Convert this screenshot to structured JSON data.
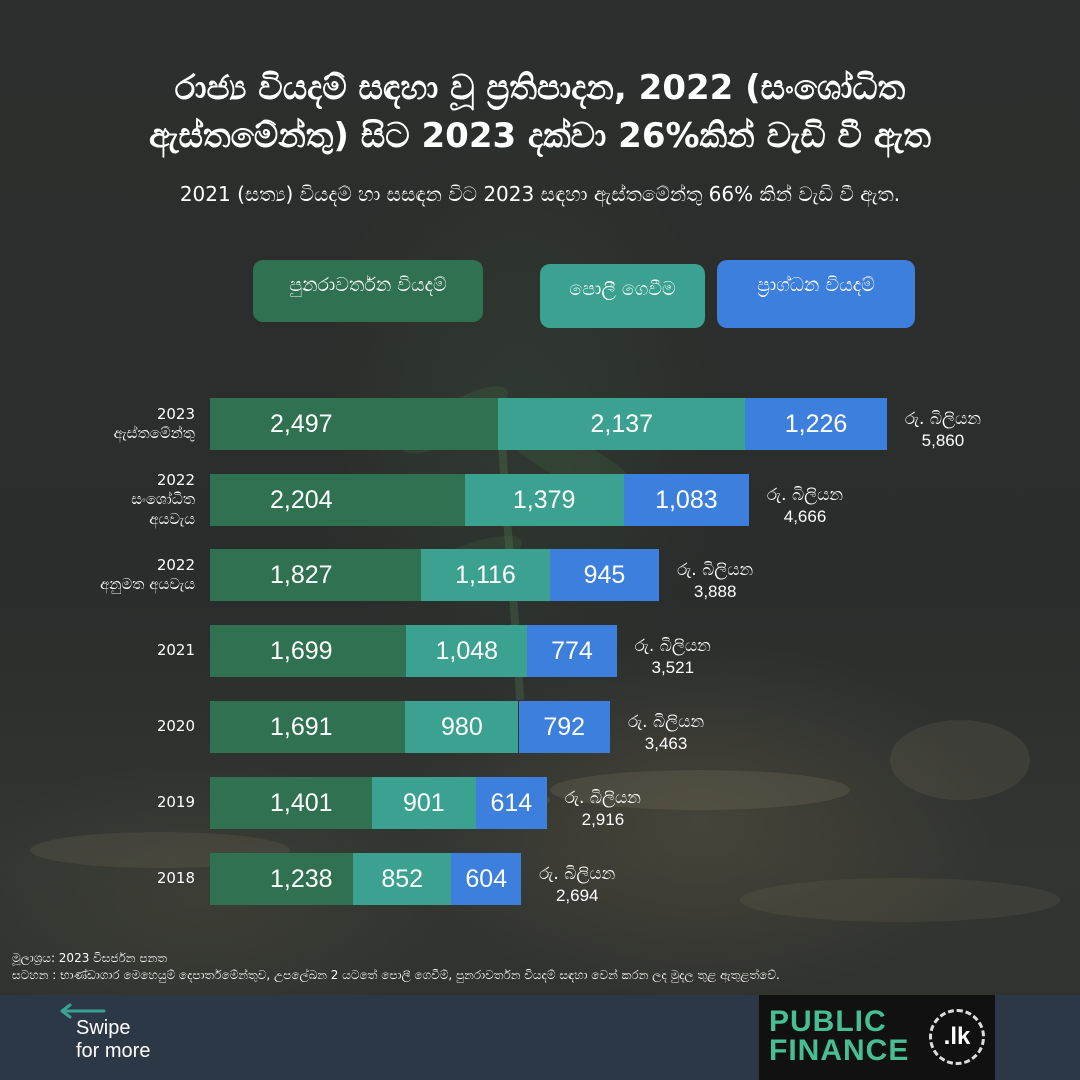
{
  "title_line1": "රාජ්‍ය වියදම් සඳහා වූ ප්‍රතිපාදන, 2022 (සංශෝධිත",
  "title_line2": "ඇස්තමේන්තු) සිට 2023 දක්වා 26%කින් වැඩි වී ඇත",
  "subtitle": "2021 (සත්‍ය) වියදම් හා සසඳන විට 2023 සඳහා ඇස්තමේන්තු 66% කින් වැඩි වී ඇත.",
  "legend": {
    "recurrent": "පුනරාවර්තන වියදම්",
    "interest": "පොලී ගෙවීම",
    "capital": "ප්‍රාග්ධන වියදම්"
  },
  "colors": {
    "recurrent": "#2f7150",
    "interest": "#3ba190",
    "capital": "#3d7fdc",
    "footer": "#2c3846",
    "logo_green": "#47bf93"
  },
  "chart_data": {
    "type": "bar",
    "orientation": "horizontal",
    "stacked": true,
    "categories": [
      [
        "2023",
        "ඇස්තමේන්තු"
      ],
      [
        "2022",
        "සංශෝධිත",
        "අයවැය"
      ],
      [
        "2022",
        "අනුමත අයවැය"
      ],
      [
        "2021"
      ],
      [
        "2020"
      ],
      [
        "2019"
      ],
      [
        "2018"
      ]
    ],
    "series": [
      {
        "name": "පුනරාවර්තන වියදම්",
        "key": "recurrent",
        "values": [
          2497,
          2204,
          1827,
          1699,
          1691,
          1401,
          1238
        ]
      },
      {
        "name": "පොලී ගෙවීම",
        "key": "interest",
        "values": [
          2137,
          1379,
          1116,
          1048,
          980,
          901,
          852
        ]
      },
      {
        "name": "ප්‍රාග්ධන වියදම්",
        "key": "capital",
        "values": [
          1226,
          1083,
          945,
          774,
          792,
          614,
          604
        ]
      }
    ],
    "value_labels": [
      [
        "2,497",
        "2,137",
        "1,226"
      ],
      [
        "2,204",
        "1,379",
        "1,083"
      ],
      [
        "1,827",
        "1,116",
        "945"
      ],
      [
        "1,699",
        "1,048",
        "774"
      ],
      [
        "1,691",
        "980",
        "792"
      ],
      [
        "1,401",
        "901",
        "614"
      ],
      [
        "1,238",
        "852",
        "604"
      ]
    ],
    "totals": [
      5860,
      4666,
      3888,
      3521,
      3463,
      2916,
      2694
    ],
    "total_labels": [
      "5,860",
      "4,666",
      "3,888",
      "3,521",
      "3,463",
      "2,916",
      "2,694"
    ],
    "total_unit": "රු. බිලියන",
    "legend_placement": "top",
    "grid": false
  },
  "footnote": {
    "source": "මූලාශ්‍රය: 2023 විසර්ජන පනත",
    "note": "සටහන : භාණ්ඩාගාර මෙහෙයුම් දෙපාර්තමේන්තුව, උපලේඛන 2 යටතේ පොලී ගෙවීම්, පුනරාවර්තන වියදම් සඳහා වෙන් කරන ලද මුදල තුළ ඇතුළත්වේ."
  },
  "footer": {
    "swipe_line1": "Swipe",
    "swipe_line2": "for more",
    "logo_line1": "PUBLIC",
    "logo_line2": "FINANCE",
    "logo_badge": ".lk"
  }
}
